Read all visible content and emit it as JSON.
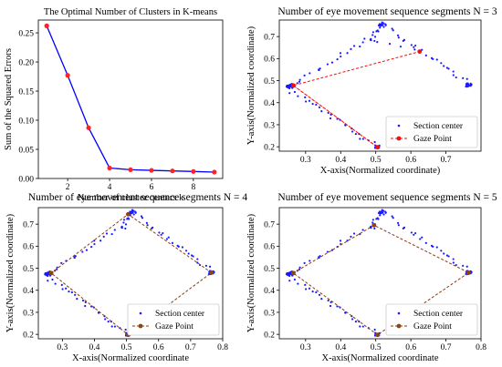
{
  "colors": {
    "elbow_line": "#0000ff",
    "elbow_marker": "#ff2222",
    "section_center": "#1a1aff",
    "gaze_red": "#ee1111",
    "gaze_brown": "#8b3a0f",
    "gaze_marker_brown": "#8b4513"
  },
  "chart_data": [
    {
      "id": "elbow",
      "type": "line",
      "title": "The Optimal Number of Clusters in K-means",
      "xlabel": "Number of cluster centers k",
      "ylabel": "Sum of the Squared Errors",
      "xlim": [
        0.6,
        9.4
      ],
      "ylim": [
        0.0,
        0.272
      ],
      "xticks": [
        2,
        4,
        6,
        8
      ],
      "yticks": [
        0.0,
        0.05,
        0.1,
        0.15,
        0.2,
        0.25
      ],
      "yticklabels": [
        "0.00",
        "0.05",
        "0.10",
        "0.15",
        "0.20",
        "0.25"
      ],
      "x": [
        1,
        2,
        3,
        4,
        5,
        6,
        7,
        8,
        9
      ],
      "y": [
        0.262,
        0.177,
        0.087,
        0.018,
        0.015,
        0.014,
        0.013,
        0.012,
        0.011
      ],
      "grid": false
    },
    {
      "id": "n3",
      "type": "scatter",
      "title": "Number of eye movement sequence segments N = 3",
      "xlabel": "X-axis(Normalized coordinate)",
      "ylabel": "Y-axis(Normalized coordinate)",
      "xlim": [
        0.225,
        0.8
      ],
      "ylim": [
        0.18,
        0.775
      ],
      "xticks": [
        0.3,
        0.4,
        0.5,
        0.6,
        0.7
      ],
      "yticks": [
        0.2,
        0.3,
        0.4,
        0.5,
        0.6,
        0.7
      ],
      "legend": [
        "Section center",
        "Gaze Point"
      ],
      "legend_loc": "lower-right",
      "gaze_x": [
        0.265,
        0.505,
        0.265,
        0.625
      ],
      "gaze_y": [
        0.478,
        0.198,
        0.478,
        0.632
      ],
      "grid": false
    },
    {
      "id": "n4",
      "type": "scatter",
      "title": "Number of eye movement sequence segments N = 4",
      "xlabel": "X-axis(Normalized coordinate",
      "ylabel": "Y-axis(Normalized coordinate)",
      "xlim": [
        0.225,
        0.8
      ],
      "ylim": [
        0.18,
        0.775
      ],
      "xticks": [
        0.3,
        0.4,
        0.5,
        0.6,
        0.7,
        0.8
      ],
      "yticks": [
        0.2,
        0.3,
        0.4,
        0.5,
        0.6,
        0.7
      ],
      "legend": [
        "Section center",
        "Gaze Point"
      ],
      "legend_loc": "lower-right",
      "gaze_x": [
        0.265,
        0.505,
        0.765,
        0.505,
        0.265
      ],
      "gaze_y": [
        0.478,
        0.745,
        0.48,
        0.198,
        0.478
      ],
      "grid": false
    },
    {
      "id": "n5",
      "type": "scatter",
      "title": "Number of eye movement sequence segments N = 5",
      "xlabel": "X-axis(Normalized coordinate",
      "ylabel": "Y-axis(Normalized coordinate)",
      "xlim": [
        0.225,
        0.8
      ],
      "ylim": [
        0.18,
        0.775
      ],
      "xticks": [
        0.3,
        0.4,
        0.5,
        0.6,
        0.7,
        0.8
      ],
      "yticks": [
        0.2,
        0.3,
        0.4,
        0.5,
        0.6,
        0.7
      ],
      "legend": [
        "Section center",
        "Gaze Point"
      ],
      "legend_loc": "lower-right",
      "gaze_x": [
        0.265,
        0.495,
        0.765,
        0.505,
        0.265
      ],
      "gaze_y": [
        0.478,
        0.695,
        0.48,
        0.198,
        0.478
      ],
      "grid": false
    }
  ]
}
